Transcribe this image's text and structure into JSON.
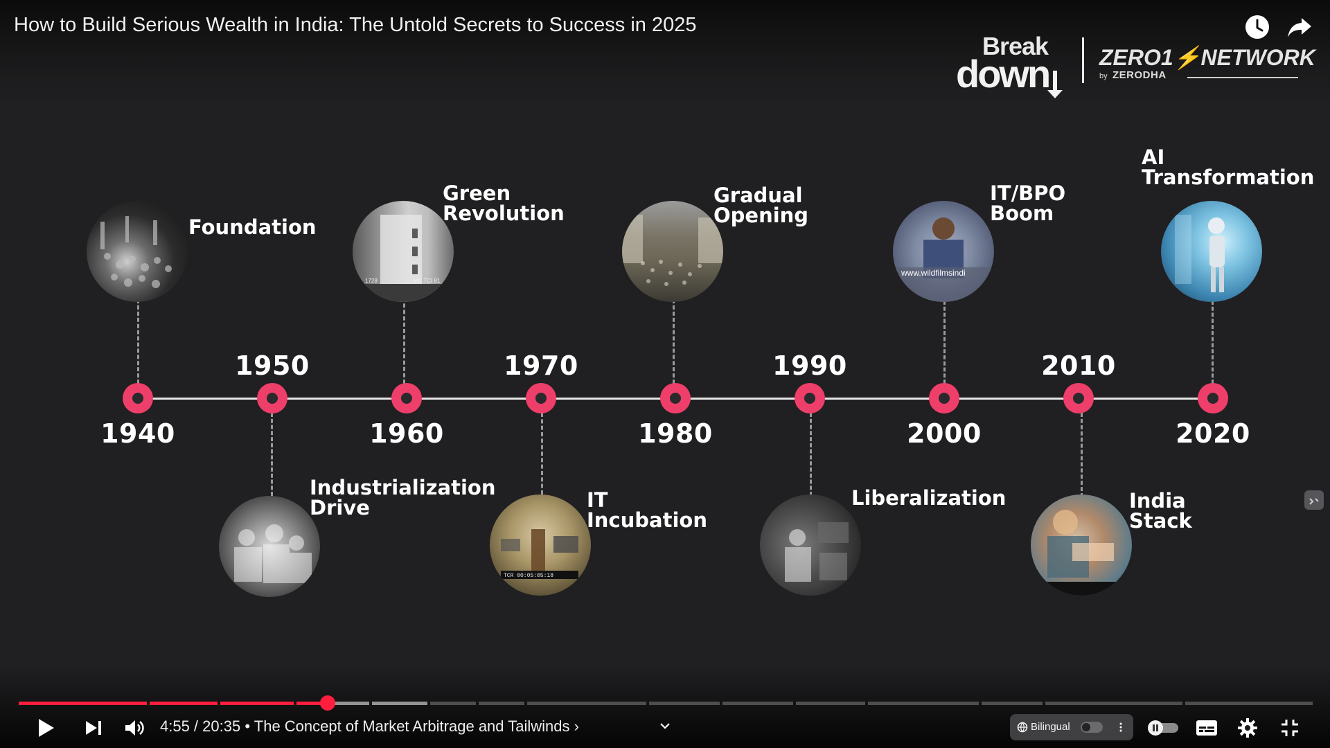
{
  "header": {
    "title": "How to Build Serious Wealth in India: The Untold Secrets to Success in 2025",
    "watch_later_icon": "clock-icon",
    "share_icon": "share-arrow-icon"
  },
  "brand": {
    "break": "Break",
    "down": "down",
    "network": "NETWORK",
    "zero": "ZERO1",
    "by": "by",
    "zerodha": "ZERODHA"
  },
  "timeline": {
    "accent_color": "#ee3e6a",
    "years": [
      "1940",
      "1950",
      "1960",
      "1970",
      "1980",
      "1990",
      "2000",
      "2010",
      "2020"
    ],
    "eras": [
      {
        "year": "1940",
        "label": "Foundation",
        "position": "above"
      },
      {
        "year": "1950",
        "label": "Industrialization\nDrive",
        "position": "below"
      },
      {
        "year": "1960",
        "label": "Green\nRevolution",
        "position": "above"
      },
      {
        "year": "1970",
        "label": "IT\nIncubation",
        "position": "below"
      },
      {
        "year": "1980",
        "label": "Gradual\nOpening",
        "position": "above"
      },
      {
        "year": "1990",
        "label": "Liberalization",
        "position": "below"
      },
      {
        "year": "2000",
        "label": "IT/BPO\nBoom",
        "position": "above"
      },
      {
        "year": "2010",
        "label": "India\nStack",
        "position": "below"
      },
      {
        "year": "2020",
        "label": "AI\nTransformation",
        "position": "above"
      }
    ],
    "image_captions": {
      "it_bpo": "www.wildfilmsindi",
      "incubation_tc": "TCR 00:05:05:18",
      "green_rev": "1728",
      "green_rev2": "MC TCI 81"
    }
  },
  "player": {
    "current_time": "4:55",
    "duration": "20:35",
    "time_display": "4:55 / 20:35",
    "chapter_separator": "•",
    "chapter": "The Concept of Market Arbitrage and Tailwinds",
    "chapter_chevron": "›",
    "progress_fraction": 0.239,
    "bilingual_label": "Bilingual",
    "play_icon": "play-icon",
    "next_icon": "next-icon",
    "volume_icon": "volume-icon",
    "captions_icon": "subtitles-icon",
    "settings_icon": "gear-icon",
    "exit_fullscreen_icon": "exit-fullscreen-icon",
    "played_color": "#ff1f3d"
  }
}
